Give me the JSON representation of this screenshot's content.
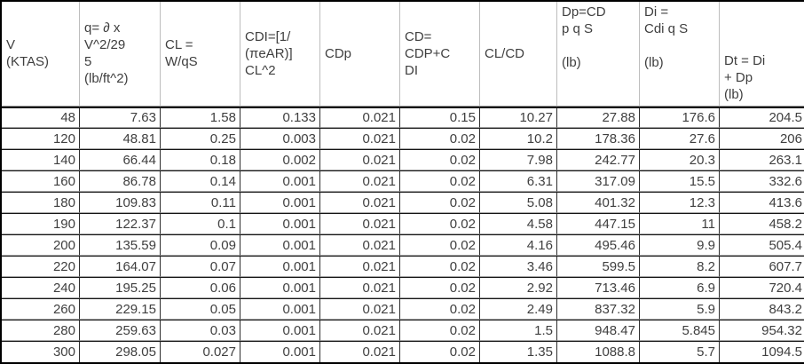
{
  "chart_data": {
    "type": "table",
    "columns": [
      "V\n(KTAS)",
      "q= ∂ x\nV^2/29\n5\n(lb/ft^2)",
      "CL =\nW/qS",
      "CDI=[1/\n(πeAR)]\nCL^2",
      "CDp",
      "CD=\nCDP+C\nDI",
      "CL/CD",
      "Dp=CD\np q S\n\n(lb)",
      "Di =\nCdi q S\n\n(lb)",
      "Dt = Di\n+ Dp\n(lb)"
    ],
    "rows": [
      [
        "48",
        "7.63",
        "1.58",
        "0.133",
        "0.021",
        "0.15",
        "10.27",
        "27.88",
        "176.6",
        "204.5"
      ],
      [
        "120",
        "48.81",
        "0.25",
        "0.003",
        "0.021",
        "0.02",
        "10.2",
        "178.36",
        "27.6",
        "206"
      ],
      [
        "140",
        "66.44",
        "0.18",
        "0.002",
        "0.021",
        "0.02",
        "7.98",
        "242.77",
        "20.3",
        "263.1"
      ],
      [
        "160",
        "86.78",
        "0.14",
        "0.001",
        "0.021",
        "0.02",
        "6.31",
        "317.09",
        "15.5",
        "332.6"
      ],
      [
        "180",
        "109.83",
        "0.11",
        "0.001",
        "0.021",
        "0.02",
        "5.08",
        "401.32",
        "12.3",
        "413.6"
      ],
      [
        "190",
        "122.37",
        "0.1",
        "0.001",
        "0.021",
        "0.02",
        "4.58",
        "447.15",
        "11",
        "458.2"
      ],
      [
        "200",
        "135.59",
        "0.09",
        "0.001",
        "0.021",
        "0.02",
        "4.16",
        "495.46",
        "9.9",
        "505.4"
      ],
      [
        "220",
        "164.07",
        "0.07",
        "0.001",
        "0.021",
        "0.02",
        "3.46",
        "599.5",
        "8.2",
        "607.7"
      ],
      [
        "240",
        "195.25",
        "0.06",
        "0.001",
        "0.021",
        "0.02",
        "2.92",
        "713.46",
        "6.9",
        "720.4"
      ],
      [
        "260",
        "229.15",
        "0.05",
        "0.001",
        "0.021",
        "0.02",
        "2.49",
        "837.32",
        "5.9",
        "843.2"
      ],
      [
        "280",
        "259.63",
        "0.03",
        "0.001",
        "0.021",
        "0.02",
        "1.5",
        "948.47",
        "5.845",
        "954.32"
      ],
      [
        "300",
        "298.05",
        "0.027",
        "0.001",
        "0.021",
        "0.02",
        "1.35",
        "1088.8",
        "5.7",
        "1094.5"
      ]
    ],
    "layout": {
      "grid": true,
      "header_text_align": "left",
      "cell_text_align": "right"
    }
  },
  "colors": {
    "background": "#ffffff",
    "text": "#3f3f3f",
    "outer_border": "#000000",
    "data_grid_line": "#2e2e2e",
    "row_separator_dark": "#141414",
    "row_separator_light": "#a6a6a6",
    "header_divider": "#bdbdbd"
  }
}
